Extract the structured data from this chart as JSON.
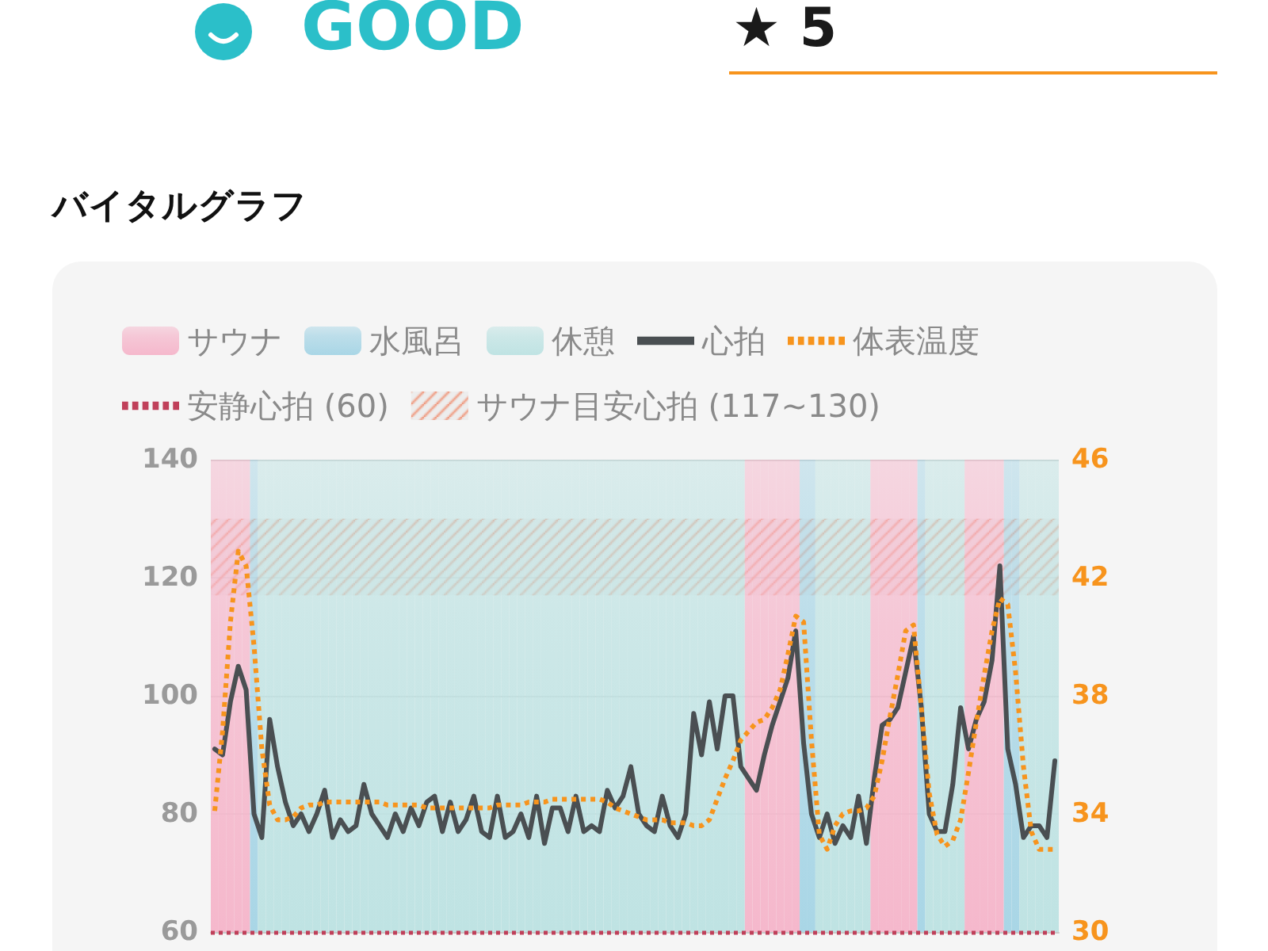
{
  "chart_data": {
    "type": "line",
    "title": "バイタルグラフ",
    "annotations": [
      "GOOD",
      "★ 5"
    ],
    "categories": [
      null,
      null,
      null,
      null,
      null,
      null,
      null,
      null,
      null,
      null,
      null,
      null,
      null,
      null,
      null,
      null,
      null,
      null,
      null,
      null,
      null,
      null,
      null,
      null,
      null,
      null,
      null,
      null,
      null,
      null,
      null,
      null,
      null,
      null,
      null,
      null,
      null,
      null,
      null,
      null,
      null,
      null,
      null,
      null,
      null,
      null,
      null,
      null,
      null,
      null,
      null,
      null,
      null,
      null,
      null,
      null,
      null,
      null,
      null,
      null,
      null,
      null,
      null,
      null,
      null,
      null,
      null,
      null,
      null,
      null,
      null,
      null,
      null,
      null,
      null,
      null,
      null,
      null,
      null,
      null,
      null,
      null,
      null,
      null,
      null,
      null,
      null,
      null,
      null,
      null,
      null,
      null,
      null,
      null,
      null,
      null,
      null,
      null,
      null,
      null,
      null,
      null,
      null,
      null,
      null,
      null,
      null,
      null
    ],
    "ylim": [
      60,
      140
    ],
    "yticks": [
      60,
      80,
      100,
      120,
      140
    ],
    "y2lim": [
      30,
      46
    ],
    "y2ticks": [
      30,
      34,
      38,
      42,
      46
    ],
    "tick_labels": "y",
    "grid": "y",
    "legend": "top",
    "series": [
      {
        "name": "サウナ",
        "type": "bar",
        "color": "#f5b8cc",
        "values": [
          140,
          140,
          140,
          140,
          140,
          null,
          null,
          null,
          null,
          null,
          null,
          null,
          null,
          null,
          null,
          null,
          null,
          null,
          null,
          null,
          null,
          null,
          null,
          null,
          null,
          null,
          null,
          null,
          null,
          null,
          null,
          null,
          null,
          null,
          null,
          null,
          null,
          null,
          null,
          null,
          null,
          null,
          null,
          null,
          null,
          null,
          null,
          null,
          null,
          null,
          null,
          null,
          null,
          null,
          null,
          null,
          null,
          null,
          null,
          null,
          null,
          null,
          null,
          null,
          null,
          null,
          null,
          null,
          140,
          140,
          140,
          140,
          140,
          140,
          140,
          null,
          null,
          null,
          null,
          null,
          null,
          null,
          null,
          null,
          140,
          140,
          140,
          140,
          140,
          140,
          null,
          null,
          null,
          null,
          null,
          null,
          140,
          140,
          140,
          140,
          140,
          null,
          null,
          null,
          null,
          null,
          null,
          null
        ]
      },
      {
        "name": "水風呂",
        "type": "bar",
        "color": "#a9d6e6",
        "values": [
          null,
          null,
          null,
          null,
          null,
          140,
          null,
          null,
          null,
          null,
          null,
          null,
          null,
          null,
          null,
          null,
          null,
          null,
          null,
          null,
          null,
          null,
          null,
          null,
          null,
          null,
          null,
          null,
          null,
          null,
          null,
          null,
          null,
          null,
          null,
          null,
          null,
          null,
          null,
          null,
          null,
          null,
          null,
          null,
          null,
          null,
          null,
          null,
          null,
          null,
          null,
          null,
          null,
          null,
          null,
          null,
          null,
          null,
          null,
          null,
          null,
          null,
          null,
          null,
          null,
          null,
          null,
          null,
          null,
          null,
          null,
          null,
          null,
          null,
          null,
          140,
          140,
          null,
          null,
          null,
          null,
          null,
          null,
          null,
          null,
          null,
          null,
          null,
          null,
          null,
          140,
          null,
          null,
          null,
          null,
          null,
          null,
          null,
          null,
          null,
          null,
          140,
          140,
          null,
          null,
          null,
          null,
          null
        ]
      },
      {
        "name": "休憩",
        "type": "bar",
        "color": "#bfe3e3",
        "values": [
          null,
          null,
          null,
          null,
          null,
          null,
          140,
          140,
          140,
          140,
          140,
          140,
          140,
          140,
          140,
          140,
          140,
          140,
          140,
          140,
          140,
          140,
          140,
          140,
          140,
          140,
          140,
          140,
          140,
          140,
          140,
          140,
          140,
          140,
          140,
          140,
          140,
          140,
          140,
          140,
          140,
          140,
          140,
          140,
          140,
          140,
          140,
          140,
          140,
          140,
          140,
          140,
          140,
          140,
          140,
          140,
          140,
          140,
          140,
          140,
          140,
          140,
          140,
          140,
          140,
          140,
          140,
          140,
          null,
          null,
          null,
          null,
          null,
          null,
          null,
          null,
          null,
          140,
          140,
          140,
          140,
          140,
          140,
          140,
          null,
          null,
          null,
          null,
          null,
          null,
          null,
          140,
          140,
          140,
          140,
          140,
          null,
          null,
          null,
          null,
          null,
          null,
          null,
          140,
          140,
          140,
          140,
          140
        ]
      },
      {
        "name": "心拍",
        "color": "#4a4f52",
        "line_style": "solid",
        "values": [
          91,
          90,
          99,
          105,
          101,
          80,
          76,
          96,
          88,
          82,
          78,
          80,
          77,
          80,
          84,
          76,
          79,
          77,
          78,
          85,
          80,
          78,
          76,
          80,
          77,
          81,
          78,
          82,
          83,
          77,
          82,
          77,
          79,
          83,
          77,
          76,
          83,
          76,
          77,
          80,
          76,
          83,
          75,
          81,
          81,
          77,
          83,
          77,
          78,
          77,
          84,
          81,
          83,
          88,
          80,
          78,
          77,
          83,
          78,
          76,
          80,
          97,
          90,
          99,
          91,
          100,
          100,
          88,
          86,
          84,
          90,
          95,
          99,
          103,
          111,
          92,
          80,
          76,
          80,
          75,
          78,
          76,
          83,
          75,
          86,
          95,
          96,
          98,
          104,
          110,
          98,
          80,
          77,
          77,
          85,
          98,
          91,
          96,
          99,
          106,
          122,
          91,
          85,
          76,
          78,
          78,
          76,
          89
        ]
      },
      {
        "name": "体表温度",
        "color": "#f7941d",
        "axis": "y2",
        "line_style": "dotted",
        "values": [
          34.1,
          36.8,
          40.5,
          42.9,
          42.4,
          39.7,
          36.2,
          34.3,
          33.8,
          33.8,
          33.9,
          34.2,
          34.3,
          34.3,
          34.4,
          34.4,
          34.4,
          34.4,
          34.4,
          34.4,
          34.4,
          34.4,
          34.3,
          34.3,
          34.3,
          34.3,
          34.3,
          34.2,
          34.2,
          34.2,
          34.2,
          34.2,
          34.2,
          34.2,
          34.2,
          34.2,
          34.3,
          34.3,
          34.3,
          34.3,
          34.4,
          34.4,
          34.4,
          34.5,
          34.5,
          34.5,
          34.5,
          34.5,
          34.5,
          34.5,
          34.4,
          34.2,
          34.1,
          34.0,
          33.9,
          33.8,
          33.8,
          33.8,
          33.7,
          33.7,
          33.7,
          33.6,
          33.6,
          33.8,
          34.5,
          35.2,
          35.8,
          36.5,
          36.8,
          37.1,
          37.2,
          37.6,
          38.2,
          39.4,
          40.7,
          40.5,
          36.5,
          33.3,
          32.8,
          33.6,
          34.0,
          34.1,
          34.1,
          34.2,
          34.6,
          35.8,
          37.3,
          38.7,
          40.2,
          40.4,
          37.6,
          34.7,
          33.3,
          32.9,
          33.1,
          33.8,
          35.4,
          37.1,
          38.7,
          40.2,
          41.3,
          41.1,
          38.8,
          35.6,
          33.4,
          32.8,
          32.8,
          32.8
        ]
      }
    ],
    "ref_lines": [
      {
        "axis": "y",
        "value": 60,
        "label": "安静心拍 (60)",
        "color": "#c0405a",
        "line_style": "dotted"
      }
    ],
    "bands": [
      {
        "axis": "y",
        "from": 117,
        "to": 130,
        "label": "サウナ目安心拍 (117~130)",
        "color": "#f08a6a"
      }
    ]
  }
}
